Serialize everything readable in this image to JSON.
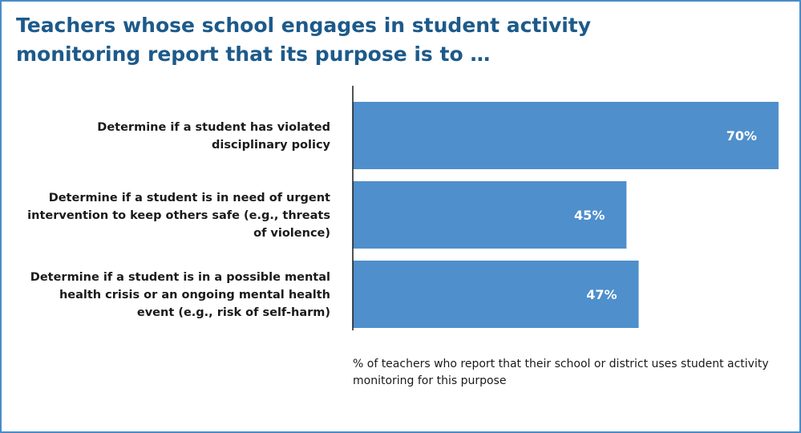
{
  "chart_data": {
    "type": "bar",
    "orientation": "horizontal",
    "title": "Teachers whose school engages in student activity monitoring report that its purpose is to …",
    "categories": [
      "Determine if a student has violated disciplinary policy",
      "Determine if a student is in need of urgent intervention to keep others safe (e.g., threats of violence)",
      "Determine if a student is in a possible mental health crisis or an ongoing mental health event (e.g., risk of self-harm)"
    ],
    "category_lines": [
      [
        "Determine if a student has violated",
        "disciplinary policy"
      ],
      [
        "Determine if a student is in need of urgent",
        "intervention to keep others safe (e.g., threats",
        "of violence)"
      ],
      [
        "Determine if a student is in a possible mental",
        "health crisis or an ongoing mental health",
        "event (e.g., risk of self-harm)"
      ]
    ],
    "values": [
      70,
      45,
      47
    ],
    "value_labels": [
      "70%",
      "45%",
      "47%"
    ],
    "xlim": [
      0,
      70
    ],
    "xlabel": "% of teachers who report that their school or district uses student activity monitoring for this purpose",
    "grid": false,
    "legend": "none",
    "bar_color": "#4f8fcc",
    "axis_color": "#1a1a1a"
  }
}
